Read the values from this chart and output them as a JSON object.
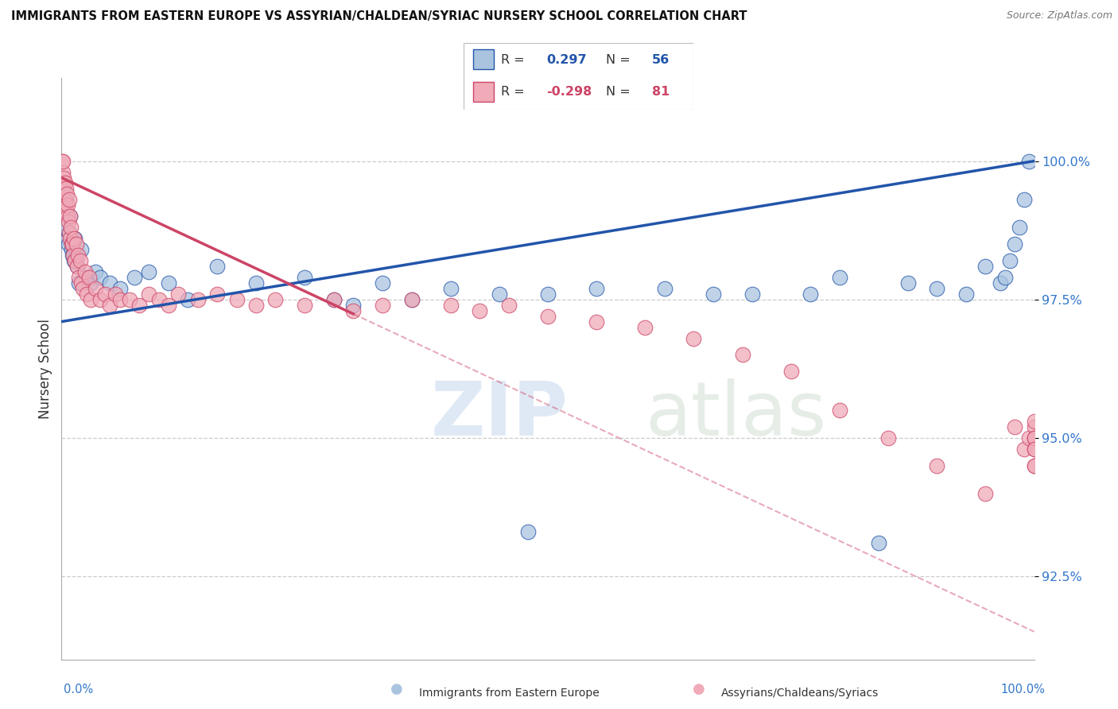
{
  "title": "IMMIGRANTS FROM EASTERN EUROPE VS ASSYRIAN/CHALDEAN/SYRIAC NURSERY SCHOOL CORRELATION CHART",
  "source": "Source: ZipAtlas.com",
  "ylabel": "Nursery School",
  "xmin": 0.0,
  "xmax": 100.0,
  "ymin": 91.0,
  "ymax": 101.5,
  "blue_color": "#aac4e0",
  "blue_line_color": "#2255aa",
  "pink_color": "#f0aab8",
  "pink_line_color": "#cc4466",
  "watermark_zip": "ZIP",
  "watermark_atlas": "atlas",
  "xlabel_bottom_left": "Immigrants from Eastern Europe",
  "xlabel_bottom_right": "Assyrians/Chaldeans/Syriacs",
  "blue_x": [
    0.2,
    0.3,
    0.4,
    0.5,
    0.6,
    0.7,
    0.8,
    0.9,
    1.0,
    1.1,
    1.2,
    1.3,
    1.4,
    1.5,
    1.6,
    1.8,
    2.0,
    2.5,
    3.0,
    3.5,
    4.0,
    5.0,
    6.0,
    7.5,
    9.0,
    11.0,
    13.0,
    16.0,
    20.0,
    25.0,
    28.0,
    30.0,
    33.0,
    36.0,
    40.0,
    45.0,
    48.0,
    50.0,
    55.0,
    62.0,
    67.0,
    71.0,
    77.0,
    80.0,
    84.0,
    87.0,
    90.0,
    93.0,
    95.0,
    96.5,
    97.0,
    97.5,
    98.0,
    98.5,
    99.0,
    99.5
  ],
  "blue_y": [
    99.5,
    99.2,
    98.8,
    99.3,
    98.6,
    98.5,
    98.7,
    99.0,
    98.4,
    98.3,
    98.5,
    98.2,
    98.6,
    98.3,
    98.1,
    97.8,
    98.4,
    97.9,
    97.8,
    98.0,
    97.9,
    97.8,
    97.7,
    97.9,
    98.0,
    97.8,
    97.5,
    98.1,
    97.8,
    97.9,
    97.5,
    97.4,
    97.8,
    97.5,
    97.7,
    97.6,
    93.3,
    97.6,
    97.7,
    97.7,
    97.6,
    97.6,
    97.6,
    97.9,
    93.1,
    97.8,
    97.7,
    97.6,
    98.1,
    97.8,
    97.9,
    98.2,
    98.5,
    98.8,
    99.3,
    100.0
  ],
  "pink_x": [
    0.05,
    0.1,
    0.15,
    0.2,
    0.25,
    0.3,
    0.35,
    0.4,
    0.45,
    0.5,
    0.55,
    0.6,
    0.65,
    0.7,
    0.75,
    0.8,
    0.85,
    0.9,
    0.95,
    1.0,
    1.1,
    1.2,
    1.3,
    1.4,
    1.5,
    1.6,
    1.7,
    1.8,
    1.9,
    2.0,
    2.2,
    2.4,
    2.6,
    2.8,
    3.0,
    3.5,
    4.0,
    4.5,
    5.0,
    5.5,
    6.0,
    7.0,
    8.0,
    9.0,
    10.0,
    11.0,
    12.0,
    14.0,
    16.0,
    18.0,
    20.0,
    22.0,
    25.0,
    28.0,
    30.0,
    33.0,
    36.0,
    40.0,
    43.0,
    46.0,
    50.0,
    55.0,
    60.0,
    65.0,
    70.0,
    75.0,
    80.0,
    85.0,
    90.0,
    95.0,
    98.0,
    99.0,
    99.5,
    100.0,
    100.0,
    100.0,
    100.0,
    100.0,
    100.0,
    100.0,
    100.0
  ],
  "pink_y": [
    100.0,
    99.8,
    100.0,
    99.7,
    99.5,
    99.3,
    99.6,
    99.2,
    99.5,
    99.1,
    99.4,
    99.0,
    99.2,
    98.9,
    99.3,
    98.7,
    99.0,
    98.6,
    98.8,
    98.5,
    98.5,
    98.3,
    98.6,
    98.2,
    98.5,
    98.1,
    98.3,
    97.9,
    98.2,
    97.8,
    97.7,
    98.0,
    97.6,
    97.9,
    97.5,
    97.7,
    97.5,
    97.6,
    97.4,
    97.6,
    97.5,
    97.5,
    97.4,
    97.6,
    97.5,
    97.4,
    97.6,
    97.5,
    97.6,
    97.5,
    97.4,
    97.5,
    97.4,
    97.5,
    97.3,
    97.4,
    97.5,
    97.4,
    97.3,
    97.4,
    97.2,
    97.1,
    97.0,
    96.8,
    96.5,
    96.2,
    95.5,
    95.0,
    94.5,
    94.0,
    95.2,
    94.8,
    95.0,
    95.2,
    94.5,
    95.0,
    94.8,
    95.3,
    95.0,
    94.5,
    94.8
  ]
}
